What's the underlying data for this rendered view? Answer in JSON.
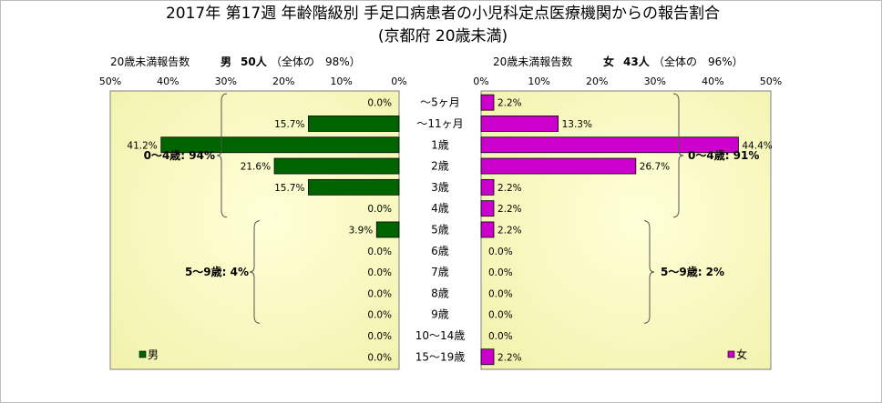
{
  "chart_data": {
    "type": "bar",
    "orientation": "horizontal",
    "layout": "back-to-back",
    "title": "2017年 第17週 年齢階級別 手足口病患者の小児科定点医療機関からの報告割合",
    "subtitle": "(京都府 20歳未満)",
    "categories": [
      "～5ヶ月",
      "～11ヶ月",
      "1歳",
      "2歳",
      "3歳",
      "4歳",
      "5歳",
      "6歳",
      "7歳",
      "8歳",
      "9歳",
      "10～14歳",
      "15～19歳"
    ],
    "xlim": [
      0,
      50
    ],
    "ticks": [
      "50%",
      "40%",
      "30%",
      "20%",
      "10%",
      "0%"
    ],
    "ticks_right": [
      "0%",
      "10%",
      "20%",
      "30%",
      "40%",
      "50%"
    ],
    "grid": false,
    "panels": [
      {
        "side": "left",
        "header_label": "20歳未満報告数",
        "header_sex": "男",
        "header_count": "50人",
        "header_share": "（全体の　98%）",
        "series": [
          {
            "name": "男",
            "color": "#006400",
            "values": [
              0.0,
              15.7,
              41.2,
              21.6,
              15.7,
              0.0,
              3.9,
              0.0,
              0.0,
              0.0,
              0.0,
              0.0,
              0.0
            ],
            "labels": [
              "0.0%",
              "15.7%",
              "41.2%",
              "21.6%",
              "15.7%",
              "0.0%",
              "3.9%",
              "0.0%",
              "0.0%",
              "0.0%",
              "0.0%",
              "0.0%",
              "0.0%"
            ]
          }
        ],
        "groups": [
          {
            "label": "0～4歳: 94%",
            "from": 0,
            "to": 5
          },
          {
            "label": "5～9歳: 4%",
            "from": 6,
            "to": 10
          }
        ],
        "legend": "bottom-left",
        "background": "#ffffcc"
      },
      {
        "side": "right",
        "header_label": "20歳未満報告数",
        "header_sex": "女",
        "header_count": "43人",
        "header_share": "（全体の　96%）",
        "series": [
          {
            "name": "女",
            "color": "#cc00cc",
            "values": [
              2.2,
              13.3,
              44.4,
              26.7,
              2.2,
              2.2,
              2.2,
              0.0,
              0.0,
              0.0,
              0.0,
              0.0,
              2.2
            ],
            "labels": [
              "2.2%",
              "13.3%",
              "44.4%",
              "26.7%",
              "2.2%",
              "2.2%",
              "2.2%",
              "0.0%",
              "0.0%",
              "0.0%",
              "0.0%",
              "0.0%",
              "2.2%"
            ]
          }
        ],
        "groups": [
          {
            "label": "0～4歳: 91%",
            "from": 0,
            "to": 5
          },
          {
            "label": "5～9歳: 2%",
            "from": 6,
            "to": 10
          }
        ],
        "legend": "bottom-right",
        "background": "#ffffcc"
      }
    ]
  }
}
